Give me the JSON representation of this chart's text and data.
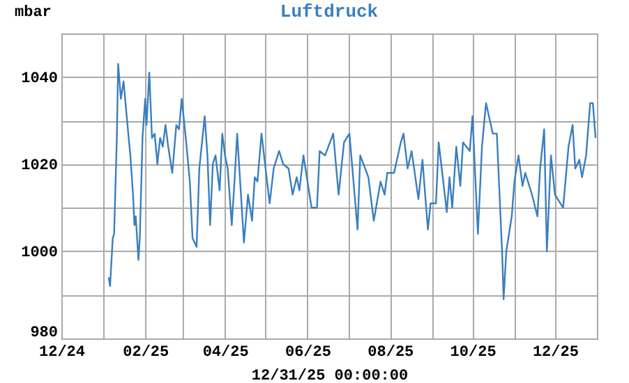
{
  "chart_data": {
    "type": "line",
    "title": "Luftdruck",
    "ylabel": "mbar",
    "xlabel": "12/31/25 00:00:00",
    "x": [
      "2025-01-05",
      "2025-01-06",
      "2025-01-08",
      "2025-01-09",
      "2025-01-11",
      "2025-01-12",
      "2025-01-14",
      "2025-01-16",
      "2025-01-18",
      "2025-01-21",
      "2025-01-23",
      "2025-01-24",
      "2025-01-25",
      "2025-01-27",
      "2025-01-28",
      "2025-01-30",
      "2025-02-01",
      "2025-02-02",
      "2025-02-04",
      "2025-02-06",
      "2025-02-08",
      "2025-02-10",
      "2025-02-12",
      "2025-02-14",
      "2025-02-16",
      "2025-02-18",
      "2025-02-20",
      "2025-02-21",
      "2025-02-24",
      "2025-02-26",
      "2025-02-28",
      "2025-03-03",
      "2025-03-06",
      "2025-03-08",
      "2025-03-11",
      "2025-03-13",
      "2025-03-17",
      "2025-03-19",
      "2025-03-21",
      "2025-03-23",
      "2025-03-25",
      "2025-03-28",
      "2025-03-30",
      "2025-04-01",
      "2025-04-03",
      "2025-04-06",
      "2025-04-08",
      "2025-04-10",
      "2025-04-15",
      "2025-04-18",
      "2025-04-21",
      "2025-04-23",
      "2025-04-25",
      "2025-04-28",
      "2025-05-04",
      "2025-05-07",
      "2025-05-11",
      "2025-05-14",
      "2025-05-18",
      "2025-05-21",
      "2025-05-24",
      "2025-05-26",
      "2025-05-29",
      "2025-06-04",
      "2025-06-08",
      "2025-06-10",
      "2025-06-14",
      "2025-06-20",
      "2025-06-24",
      "2025-06-28",
      "2025-07-02",
      "2025-07-08",
      "2025-07-10",
      "2025-07-16",
      "2025-07-20",
      "2025-07-25",
      "2025-07-28",
      "2025-07-30",
      "2025-08-04",
      "2025-08-09",
      "2025-08-11",
      "2025-08-14",
      "2025-08-17",
      "2025-08-22",
      "2025-08-25",
      "2025-08-29",
      "2025-08-31",
      "2025-09-04",
      "2025-09-06",
      "2025-09-12",
      "2025-09-14",
      "2025-09-16",
      "2025-09-19",
      "2025-09-22",
      "2025-09-24",
      "2025-09-29",
      "2025-10-01",
      "2025-10-05",
      "2025-10-08",
      "2025-10-11",
      "2025-10-16",
      "2025-10-19",
      "2025-10-23",
      "2025-10-24",
      "2025-10-26",
      "2025-10-30",
      "2025-11-01",
      "2025-11-04",
      "2025-11-07",
      "2025-11-09",
      "2025-11-14",
      "2025-11-18",
      "2025-11-20",
      "2025-11-23",
      "2025-11-25",
      "2025-11-28",
      "2025-12-01",
      "2025-12-07",
      "2025-12-11",
      "2025-12-14",
      "2025-12-16",
      "2025-12-19",
      "2025-12-21",
      "2025-12-24",
      "2025-12-27",
      "2025-12-29",
      "2025-12-31"
    ],
    "series": [
      {
        "color": "#3a7fbf",
        "values": [
          994,
          992,
          1003,
          1004,
          1026,
          1043,
          1035,
          1039,
          1032,
          1022,
          1013,
          1006,
          1008,
          998,
          1003,
          1026,
          1035,
          1029,
          1041,
          1026,
          1027,
          1020,
          1026,
          1024,
          1029,
          1024,
          1020,
          1018,
          1029,
          1028,
          1035,
          1026,
          1016,
          1003,
          1001,
          1019,
          1031,
          1022,
          1006,
          1020,
          1022,
          1014,
          1027,
          1022,
          1019,
          1006,
          1016,
          1027,
          1002,
          1013,
          1007,
          1017,
          1016,
          1027,
          1011,
          1019,
          1023,
          1020,
          1019,
          1013,
          1017,
          1014,
          1022,
          1010,
          1010,
          1023,
          1022,
          1027,
          1013,
          1025,
          1027,
          1005,
          1022,
          1017,
          1007,
          1016,
          1013,
          1018,
          1018,
          1025,
          1027,
          1019,
          1023,
          1012,
          1021,
          1005,
          1011,
          1011,
          1025,
          1009,
          1017,
          1010,
          1024,
          1015,
          1025,
          1023,
          1031,
          1004,
          1024,
          1034,
          1027,
          1027,
          999,
          989,
          1000,
          1008,
          1016,
          1022,
          1015,
          1018,
          1013,
          1008,
          1019,
          1028,
          1000,
          1022,
          1013,
          1010,
          1024,
          1029,
          1019,
          1021,
          1017,
          1022,
          1034,
          1034,
          1026
        ]
      }
    ],
    "xlim": [
      "2024-12",
      "2026-01"
    ],
    "xticks": [
      {
        "value": "2024-12",
        "label": "12/24"
      },
      {
        "value": "2025-01",
        "label": null
      },
      {
        "value": "2025-02",
        "label": "02/25"
      },
      {
        "value": "2025-03",
        "label": null
      },
      {
        "value": "2025-04",
        "label": "04/25"
      },
      {
        "value": "2025-05",
        "label": null
      },
      {
        "value": "2025-06",
        "label": "06/25"
      },
      {
        "value": "2025-07",
        "label": null
      },
      {
        "value": "2025-08",
        "label": "08/25"
      },
      {
        "value": "2025-09",
        "label": null
      },
      {
        "value": "2025-10",
        "label": "10/25"
      },
      {
        "value": "2025-11",
        "label": null
      },
      {
        "value": "2025-12",
        "label": "12/25"
      },
      {
        "value": "2026-01",
        "label": null
      }
    ],
    "ylim": [
      980,
      1050
    ],
    "yticks": [
      980,
      {
        "value": 990,
        "label": null
      },
      1000,
      {
        "value": 1010,
        "label": null
      },
      1020,
      {
        "value": 1030,
        "label": null
      },
      1040,
      {
        "value": 1050,
        "label": null
      }
    ],
    "grid": true,
    "marker": "none",
    "line_style": "solid"
  }
}
